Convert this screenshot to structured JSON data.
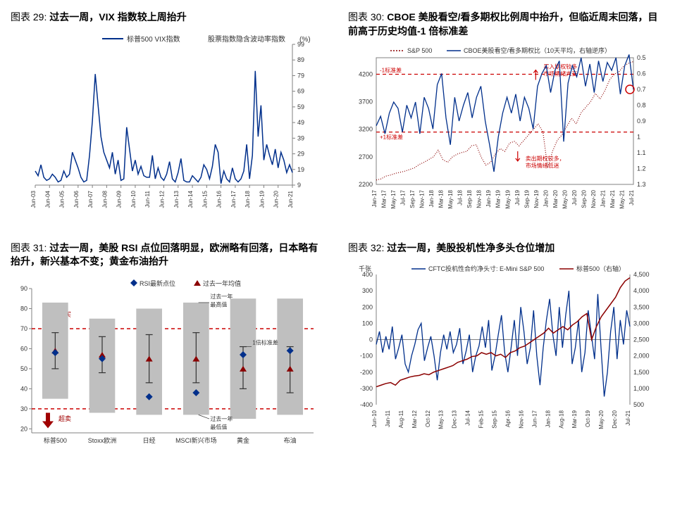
{
  "chart29": {
    "title_prefix": "图表 29: ",
    "title": "过去一周，VIX 指数较上周抬升",
    "legend1": "标普500 VIX指数",
    "legend2": "股票指数隐含波动率指数",
    "unit": "(%)",
    "xlabels": [
      "Jun-03",
      "Jun-04",
      "Jun-05",
      "Jun-06",
      "Jun-07",
      "Jun-08",
      "Jun-09",
      "Jun-10",
      "Jun-11",
      "Jun-12",
      "Jun-13",
      "Jun-14",
      "Jun-15",
      "Jun-16",
      "Jun-17",
      "Jun-18",
      "Jun-19",
      "Jun-20",
      "Jun-21"
    ],
    "yticks": [
      9,
      19,
      29,
      39,
      49,
      59,
      69,
      79,
      89,
      99
    ],
    "ylim": [
      9,
      99
    ],
    "series": [
      18,
      15,
      22,
      14,
      12,
      13,
      16,
      14,
      11,
      12,
      18,
      14,
      16,
      30,
      25,
      20,
      14,
      11,
      12,
      28,
      50,
      80,
      60,
      40,
      30,
      25,
      20,
      30,
      16,
      25,
      12,
      13,
      46,
      32,
      18,
      25,
      16,
      21,
      15,
      14,
      14,
      28,
      13,
      20,
      14,
      12,
      16,
      24,
      13,
      11,
      17,
      26,
      12,
      11,
      11,
      15,
      13,
      11,
      14,
      22,
      19,
      13,
      21,
      35,
      30,
      10,
      18,
      13,
      11,
      20,
      13,
      11,
      13,
      18,
      35,
      13,
      28,
      82,
      40,
      60,
      25,
      35,
      28,
      22,
      32,
      20,
      30,
      25,
      17,
      22,
      17
    ],
    "line_color": "#002f8b",
    "axis_color": "#808080",
    "tick_color": "#333",
    "label_fontsize": 9
  },
  "chart30": {
    "title_prefix": "图表 30: ",
    "title": "CBOE 美股看空/看多期权比例周中抬升，但临近周末回落，目前高于历史均值-1 倍标准差",
    "legend1": "S&P 500",
    "legend2": "CBOE美股看空/看多期权比（10天平均，右轴逆序）",
    "ann_top1": "-1标准差",
    "ann_top2": "买入期权较多，市场情绪亢奋",
    "ann_mid": "+1标准差",
    "ann_bot": "卖出期权较多，市场情绪低迷",
    "xlabels": [
      "Jan-17",
      "Mar-17",
      "May-17",
      "Jul-17",
      "Sep-17",
      "Nov-17",
      "Jan-18",
      "Mar-18",
      "May-18",
      "Jul-18",
      "Sep-18",
      "Nov-18",
      "Jan-19",
      "Mar-19",
      "May-19",
      "Jul-19",
      "Sep-19",
      "Nov-19",
      "Jan-20",
      "Mar-20",
      "May-20",
      "Jul-20",
      "Sep-20",
      "Nov-20",
      "Jan-21",
      "Mar-21",
      "May-21",
      "Jul-21"
    ],
    "yticks_left": [
      2200,
      2700,
      3200,
      3700,
      4200
    ],
    "ylim_left": [
      2200,
      4500
    ],
    "yticks_right": [
      0.5,
      0.6,
      0.7,
      0.8,
      0.9,
      1,
      1.1,
      1.2,
      1.3
    ],
    "ylim_right": [
      1.3,
      0.5
    ],
    "sp500": [
      2280,
      2300,
      2350,
      2370,
      2400,
      2420,
      2440,
      2470,
      2500,
      2560,
      2600,
      2650,
      2700,
      2820,
      2650,
      2600,
      2700,
      2750,
      2780,
      2800,
      2900,
      2920,
      2700,
      2550,
      2600,
      2750,
      2850,
      2800,
      2950,
      2980,
      2900,
      3000,
      3100,
      3200,
      3300,
      3150,
      2500,
      2800,
      3000,
      3100,
      3250,
      3400,
      3300,
      3500,
      3600,
      3700,
      3850,
      3750,
      3900,
      4100,
      4200,
      4250,
      4350,
      4400,
      4430
    ],
    "ratio": [
      0.93,
      0.87,
      0.98,
      0.85,
      0.78,
      0.82,
      0.97,
      0.8,
      0.88,
      0.78,
      0.98,
      0.75,
      0.82,
      0.95,
      0.67,
      0.6,
      0.88,
      1.05,
      0.75,
      0.9,
      0.8,
      0.72,
      0.88,
      0.75,
      0.68,
      0.9,
      1.05,
      1.22,
      1.0,
      0.85,
      0.75,
      0.85,
      0.73,
      0.9,
      0.75,
      0.82,
      0.95,
      0.68,
      0.6,
      0.55,
      0.72,
      0.58,
      0.52,
      1.03,
      0.66,
      0.55,
      0.62,
      0.5,
      0.68,
      0.54,
      0.72,
      0.52,
      0.65,
      0.53,
      0.58,
      0.5,
      0.73,
      0.55,
      0.48,
      0.7
    ],
    "dash_y1": 4200,
    "dash_y2": 3150,
    "sp_color": "#8b0000",
    "ratio_color": "#002f8b",
    "dash_color": "#cc0000",
    "arrow_color": "#cc0000",
    "circle_color": "#cc0000"
  },
  "chart31": {
    "title_prefix": "图表 31: ",
    "title": "过去一周，美股 RSI 点位回落明显，欧洲略有回落，日本略有抬升，新兴基本不变；黄金布油抬升",
    "legend1": "RSI最新点位",
    "legend2": "过去一年均值",
    "ann_overbuy": "超买",
    "ann_oversell": "超卖",
    "ann_high": "过去一年最高值",
    "ann_std": "1倍标准差",
    "ann_low": "过去一年最低值",
    "categories": [
      "标普500",
      "Stoxx欧洲",
      "日经",
      "MSCI新兴市场",
      "黄金",
      "布油"
    ],
    "yticks": [
      20,
      30,
      40,
      50,
      60,
      70,
      80,
      90
    ],
    "ylim": [
      18,
      90
    ],
    "overbought": 70,
    "oversold": 30,
    "bars": [
      {
        "low": 35,
        "high": 83
      },
      {
        "low": 28,
        "high": 75
      },
      {
        "low": 27,
        "high": 80
      },
      {
        "low": 27,
        "high": 83
      },
      {
        "low": 25,
        "high": 85
      },
      {
        "low": 27,
        "high": 85
      }
    ],
    "errorbars": [
      {
        "lo": 50,
        "hi": 68
      },
      {
        "lo": 48,
        "hi": 66
      },
      {
        "lo": 43,
        "hi": 67
      },
      {
        "lo": 43,
        "hi": 68
      },
      {
        "lo": 40,
        "hi": 61
      },
      {
        "lo": 38,
        "hi": 61
      }
    ],
    "mean": [
      59,
      57,
      55,
      55,
      50,
      50
    ],
    "latest": [
      58,
      55,
      36,
      38,
      57,
      59
    ],
    "bar_color": "#bfbfbf",
    "dash_color": "#cc0000",
    "arrow_color": "#a00000",
    "triangle_color": "#8b0000",
    "diamond_color": "#002f8b",
    "err_color": "#333"
  },
  "chart32": {
    "title_prefix": "图表 32: ",
    "title": "过去一周，美股投机性净多头仓位增加",
    "unit": "千张",
    "legend1": "CFTC投机性合约净头寸: E-Mini S&P 500",
    "legend2": "标普500（右轴）",
    "xlabels": [
      "Jun-10",
      "Jan-11",
      "Aug-11",
      "Mar-12",
      "Oct-12",
      "May-13",
      "Dec-13",
      "Jul-14",
      "Feb-15",
      "Sep-15",
      "Apr-16",
      "Nov-16",
      "Jun-17",
      "Jan-18",
      "Aug-18",
      "Mar-19",
      "Oct-19",
      "May-20",
      "Dec-20",
      "Jul-21"
    ],
    "yticks_left": [
      -400,
      -300,
      -200,
      -100,
      0,
      100,
      200,
      300,
      400
    ],
    "ylim_left": [
      -400,
      400
    ],
    "yticks_right": [
      500,
      1000,
      1500,
      2000,
      2500,
      3000,
      3500,
      4000,
      4500
    ],
    "ylim_right": [
      500,
      4500
    ],
    "cftc": [
      -30,
      50,
      -80,
      20,
      -60,
      80,
      -120,
      -50,
      30,
      -150,
      -200,
      -100,
      -30,
      60,
      100,
      -130,
      -50,
      20,
      -100,
      -250,
      -80,
      30,
      -60,
      50,
      -80,
      -30,
      70,
      -150,
      -70,
      30,
      -200,
      -100,
      -40,
      80,
      -50,
      120,
      -190,
      -100,
      30,
      150,
      -80,
      -200,
      -50,
      120,
      -100,
      200,
      50,
      -150,
      -50,
      180,
      -100,
      -280,
      -50,
      120,
      250,
      30,
      -100,
      200,
      -50,
      150,
      300,
      -150,
      -50,
      120,
      -200,
      -80,
      180,
      30,
      -120,
      280,
      -50,
      -350,
      -200,
      50,
      200,
      -120,
      120,
      -30,
      180,
      80
    ],
    "sp500_2": [
      1050,
      1100,
      1150,
      1180,
      1100,
      1250,
      1300,
      1350,
      1380,
      1400,
      1450,
      1420,
      1500,
      1550,
      1600,
      1650,
      1700,
      1800,
      1850,
      1900,
      1980,
      2000,
      2100,
      2050,
      2100,
      2000,
      2050,
      1950,
      2100,
      2150,
      2250,
      2300,
      2400,
      2500,
      2600,
      2700,
      2850,
      2700,
      2800,
      2900,
      2800,
      2950,
      3050,
      3200,
      3300,
      2500,
      2900,
      3200,
      3400,
      3600,
      3800,
      4100,
      4300,
      4400
    ],
    "cftc_color": "#002f8b",
    "sp_color": "#8b0000"
  },
  "common": {
    "grid_color": "#ccc",
    "text_color": "#333"
  }
}
